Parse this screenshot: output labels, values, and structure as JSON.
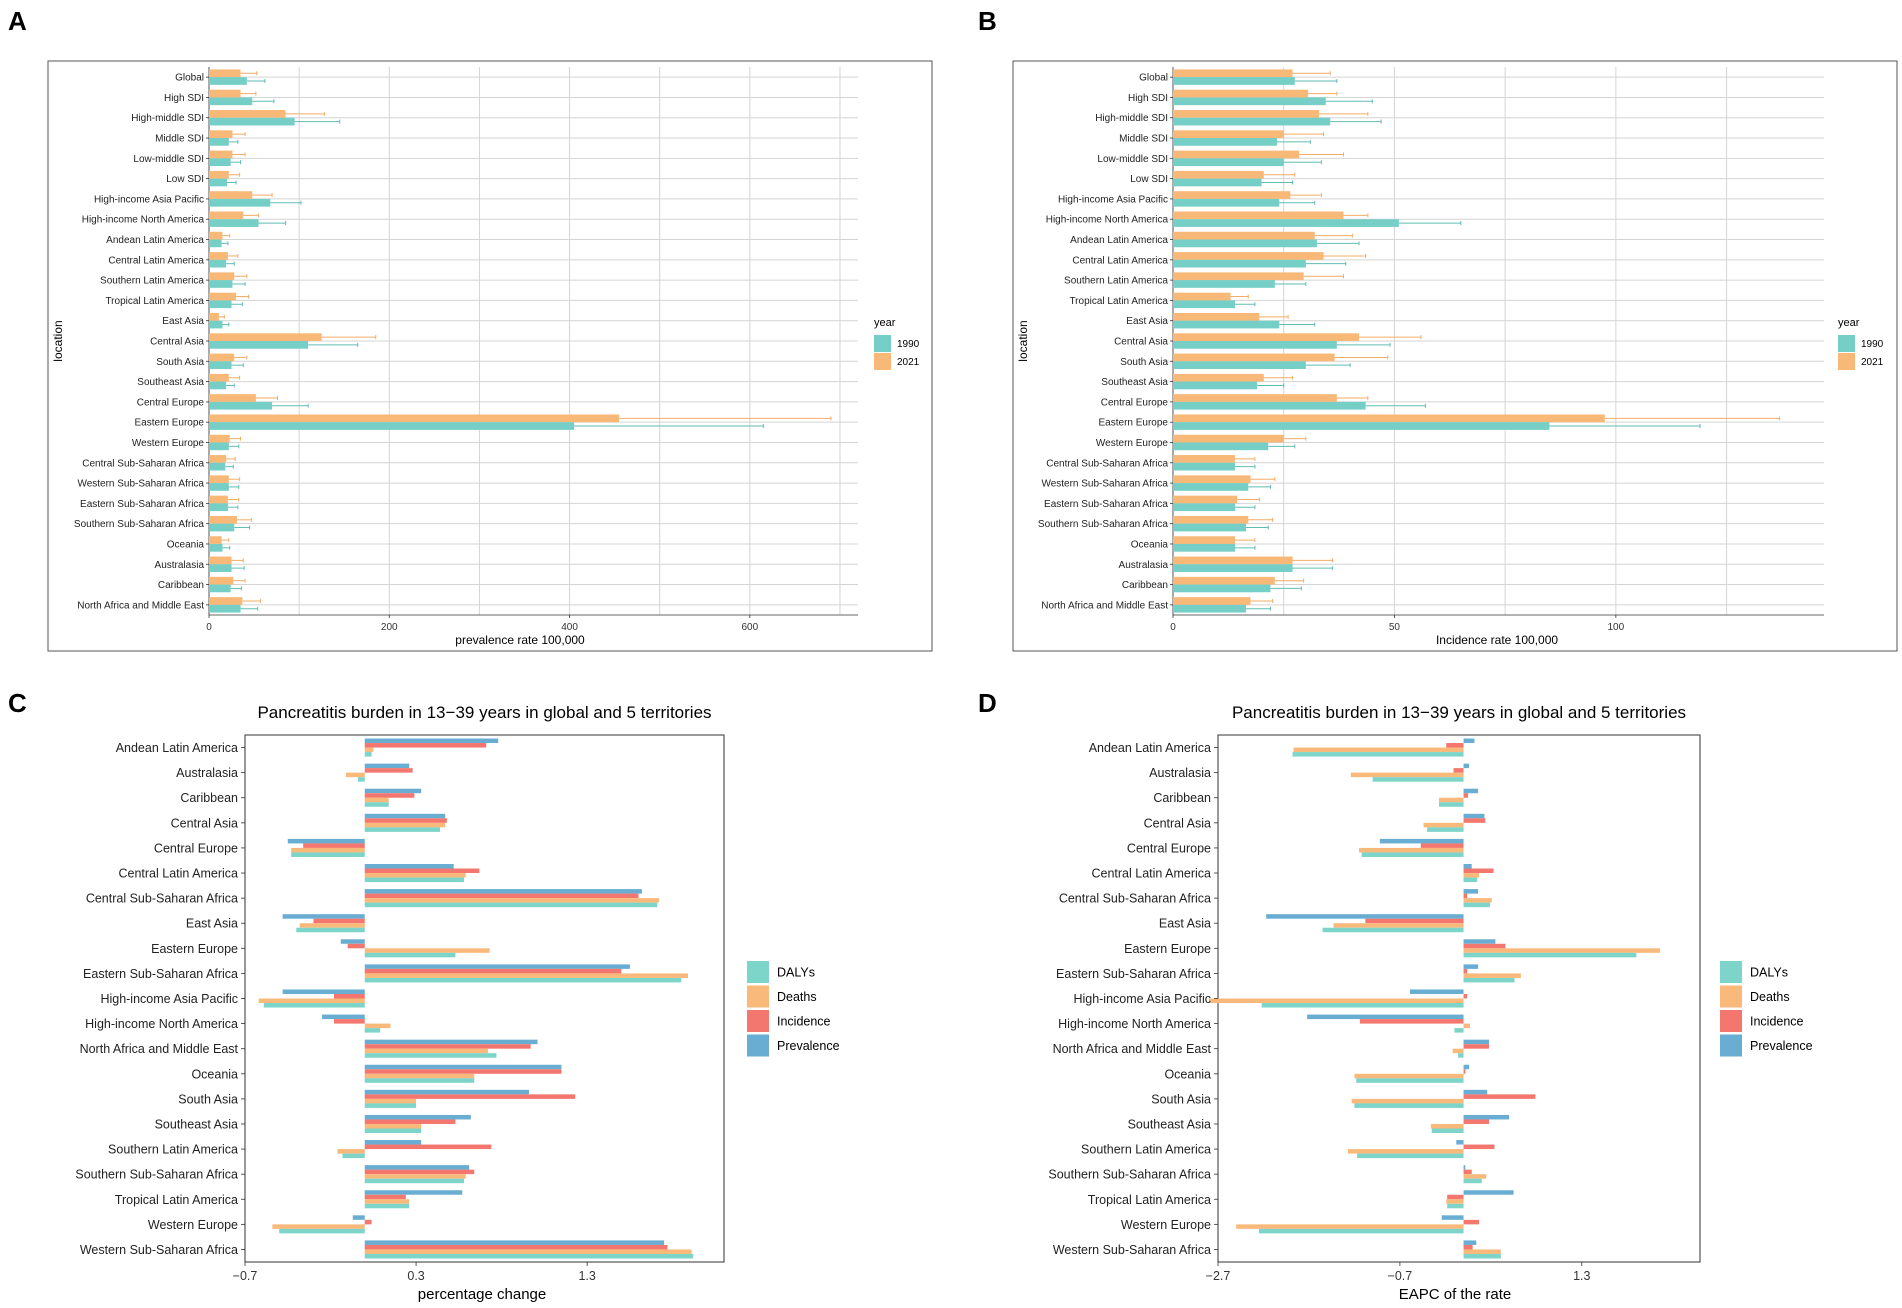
{
  "colors": {
    "c1990": "#75CFC6",
    "c2021": "#F8B877",
    "errbar1990": "#5fbdb4",
    "errbar2021": "#f3ac66",
    "DALYs": "#7DD4C9",
    "Deaths": "#F9B97A",
    "Incidence": "#F3776E",
    "Prevalence": "#6AADD3",
    "grid": "#d4d4d4"
  },
  "chart_data": [
    {
      "panel": "A",
      "type": "bar",
      "orientation": "horizontal",
      "title": "",
      "xlabel": "prevalence rate 100,000",
      "ylabel": "location",
      "xlim": [
        0,
        720
      ],
      "xticks": [
        0,
        200,
        400,
        600
      ],
      "legend": {
        "title": "year",
        "position": "right",
        "entries": [
          "1990",
          "2021"
        ]
      },
      "categories": [
        "Global",
        "High SDI",
        "High-middle SDI",
        "Middle SDI",
        "Low-middle SDI",
        "Low SDI",
        "High-income Asia Pacific",
        "High-income North America",
        "Andean Latin America",
        "Central Latin America",
        "Southern Latin America",
        "Tropical Latin America",
        "East Asia",
        "Central Asia",
        "South Asia",
        "Southeast Asia",
        "Central Europe",
        "Eastern Europe",
        "Western Europe",
        "Central Sub-Saharan Africa",
        "Western Sub-Saharan Africa",
        "Eastern Sub-Saharan Africa",
        "Southern Sub-Saharan Africa",
        "Oceania",
        "Australasia",
        "Caribbean",
        "North Africa and Middle East"
      ],
      "series": [
        {
          "name": "1990",
          "values": [
            42,
            48,
            95,
            22,
            24,
            20,
            68,
            55,
            14,
            19,
            26,
            25,
            15,
            110,
            25,
            19,
            70,
            405,
            22,
            18,
            22,
            21,
            28,
            15,
            25,
            24,
            35
          ],
          "upper": [
            62,
            72,
            145,
            32,
            35,
            30,
            102,
            85,
            21,
            28,
            40,
            37,
            22,
            165,
            38,
            28,
            110,
            615,
            33,
            27,
            33,
            32,
            45,
            23,
            39,
            36,
            54
          ]
        },
        {
          "name": "2021",
          "values": [
            35,
            35,
            85,
            26,
            26,
            22,
            48,
            38,
            15,
            21,
            28,
            30,
            11,
            125,
            28,
            22,
            52,
            455,
            23,
            19,
            22,
            21,
            31,
            14,
            25,
            27,
            37
          ],
          "upper": [
            53,
            52,
            128,
            40,
            40,
            34,
            70,
            55,
            23,
            32,
            42,
            44,
            17,
            185,
            42,
            34,
            76,
            690,
            35,
            29,
            34,
            33,
            47,
            22,
            38,
            40,
            57
          ]
        }
      ]
    },
    {
      "panel": "B",
      "type": "bar",
      "orientation": "horizontal",
      "title": "",
      "xlabel": "Incidence rate 100,000",
      "ylabel": "location",
      "xlim": [
        0,
        147
      ],
      "xticks": [
        0,
        50,
        100
      ],
      "legend": {
        "title": "year",
        "position": "right",
        "entries": [
          "1990",
          "2021"
        ]
      },
      "categories": [
        "Global",
        "High SDI",
        "High-middle SDI",
        "Middle SDI",
        "Low-middle SDI",
        "Low SDI",
        "High-income Asia Pacific",
        "High-income North America",
        "Andean Latin America",
        "Central Latin America",
        "Southern Latin America",
        "Tropical Latin America",
        "East Asia",
        "Central Asia",
        "South Asia",
        "Southeast Asia",
        "Central Europe",
        "Eastern Europe",
        "Western Europe",
        "Central Sub-Saharan Africa",
        "Western Sub-Saharan Africa",
        "Eastern Sub-Saharan Africa",
        "Southern Sub-Saharan Africa",
        "Oceania",
        "Australasia",
        "Caribbean",
        "North Africa and Middle East"
      ],
      "series": [
        {
          "name": "1990",
          "values": [
            27.5,
            34.5,
            35.5,
            23.5,
            25,
            20,
            24,
            51,
            32.5,
            30,
            23,
            14,
            24,
            37,
            30,
            19,
            43.5,
            85,
            21.5,
            14,
            17,
            14,
            16.5,
            14,
            27,
            22,
            16.5
          ],
          "upper": [
            37,
            45,
            47,
            31,
            33.5,
            27,
            32,
            65,
            42,
            39,
            30,
            18.5,
            32,
            49,
            40,
            25,
            57,
            119,
            27.5,
            18.5,
            22,
            18.5,
            21.5,
            18.5,
            36,
            29,
            22
          ]
        },
        {
          "name": "2021",
          "values": [
            27,
            30.5,
            33,
            25,
            28.5,
            20.5,
            26.5,
            38.5,
            32,
            34,
            29.5,
            13,
            19.5,
            42,
            36.5,
            20.5,
            37,
            97.5,
            25,
            14,
            17.5,
            14.5,
            17,
            14,
            27,
            23,
            17.5
          ],
          "upper": [
            35.5,
            37,
            44,
            34,
            38.5,
            27.5,
            33.5,
            44,
            40.5,
            43.5,
            38.5,
            17,
            26,
            56,
            48.5,
            27,
            44,
            137,
            30,
            18.5,
            23,
            19.5,
            22.5,
            18.5,
            36,
            29.5,
            22.5
          ]
        }
      ]
    },
    {
      "panel": "C",
      "type": "bar",
      "orientation": "horizontal",
      "title": "Pancreatitis burden in 13−39 years in global and 5 territories",
      "xlabel": "percentage change",
      "ylabel": "",
      "xlim": [
        -0.7,
        2.1
      ],
      "xticks": [
        -0.7,
        0.3,
        1.3
      ],
      "legend": {
        "title": "",
        "position": "right",
        "entries": [
          "DALYs",
          "Deaths",
          "Incidence",
          "Prevalence"
        ]
      },
      "categories": [
        "Andean Latin America",
        "Australasia",
        "Caribbean",
        "Central Asia",
        "Central Europe",
        "Central Latin America",
        "Central Sub-Saharan Africa",
        "East Asia",
        "Eastern Europe",
        "Eastern Sub-Saharan Africa",
        "High-income Asia Pacific",
        "High-income North America",
        "North Africa and Middle East",
        "Oceania",
        "South Asia",
        "Southeast Asia",
        "Southern Latin America",
        "Southern Sub-Saharan Africa",
        "Tropical Latin America",
        "Western Europe",
        "Western Sub-Saharan Africa"
      ],
      "series": [
        {
          "name": "Prevalence",
          "values": [
            0.78,
            0.26,
            0.33,
            0.47,
            -0.45,
            0.52,
            1.62,
            -0.48,
            -0.14,
            1.55,
            -0.48,
            -0.25,
            1.01,
            1.15,
            0.96,
            0.62,
            0.33,
            0.61,
            0.57,
            -0.07,
            1.75
          ]
        },
        {
          "name": "Incidence",
          "values": [
            0.71,
            0.28,
            0.29,
            0.48,
            -0.36,
            0.67,
            1.6,
            -0.3,
            -0.1,
            1.5,
            -0.18,
            -0.18,
            0.97,
            1.15,
            1.23,
            0.53,
            0.74,
            0.64,
            0.24,
            0.04,
            1.77
          ]
        },
        {
          "name": "Deaths",
          "values": [
            0.05,
            -0.11,
            0.14,
            0.47,
            -0.43,
            0.59,
            1.72,
            -0.38,
            0.73,
            1.89,
            -0.62,
            0.15,
            0.72,
            0.64,
            0.3,
            0.33,
            -0.16,
            0.59,
            0.26,
            -0.54,
            1.91
          ]
        },
        {
          "name": "DALYs",
          "values": [
            0.04,
            -0.04,
            0.14,
            0.44,
            -0.43,
            0.58,
            1.71,
            -0.4,
            0.53,
            1.85,
            -0.59,
            0.09,
            0.77,
            0.64,
            0.3,
            0.33,
            -0.13,
            0.58,
            0.26,
            -0.5,
            1.92
          ]
        }
      ]
    },
    {
      "panel": "D",
      "type": "bar",
      "orientation": "horizontal",
      "title": "Pancreatitis burden in 13−39 years in global and 5 territories",
      "xlabel": "EAPC of the rate",
      "ylabel": "",
      "xlim": [
        -2.7,
        2.6
      ],
      "xticks": [
        -2.7,
        -0.7,
        1.3
      ],
      "legend": {
        "title": "",
        "position": "right",
        "entries": [
          "DALYs",
          "Deaths",
          "Incidence",
          "Prevalence"
        ]
      },
      "categories": [
        "Andean Latin America",
        "Australasia",
        "Caribbean",
        "Central Asia",
        "Central Europe",
        "Central Latin America",
        "Central Sub-Saharan Africa",
        "East Asia",
        "Eastern Europe",
        "Eastern Sub-Saharan Africa",
        "High-income Asia Pacific",
        "High-income North America",
        "North Africa and Middle East",
        "Oceania",
        "South Asia",
        "Southeast Asia",
        "Southern Latin America",
        "Southern Sub-Saharan Africa",
        "Tropical Latin America",
        "Western Europe",
        "Western Sub-Saharan Africa"
      ],
      "series": [
        {
          "name": "Prevalence",
          "values": [
            0.12,
            0.06,
            0.16,
            0.23,
            -0.92,
            0.09,
            0.16,
            -2.17,
            0.35,
            0.16,
            -0.59,
            -1.72,
            0.28,
            0.06,
            0.26,
            0.5,
            -0.08,
            0.02,
            0.55,
            -0.24,
            0.14
          ]
        },
        {
          "name": "Incidence",
          "values": [
            -0.19,
            -0.11,
            0.05,
            0.24,
            -0.47,
            0.33,
            0.04,
            -1.08,
            0.46,
            0.04,
            0.04,
            -1.14,
            0.28,
            0.02,
            0.79,
            0.28,
            0.34,
            0.09,
            -0.18,
            0.17,
            0.1
          ]
        },
        {
          "name": "Deaths",
          "values": [
            -1.87,
            -1.24,
            -0.27,
            -0.44,
            -1.15,
            0.17,
            0.31,
            -1.43,
            2.16,
            0.63,
            -2.8,
            0.07,
            -0.12,
            -1.2,
            -1.23,
            -0.36,
            -1.27,
            0.25,
            -0.19,
            -2.5,
            0.41
          ]
        },
        {
          "name": "DALYs",
          "values": [
            -1.88,
            -1.0,
            -0.27,
            -0.4,
            -1.12,
            0.15,
            0.29,
            -1.55,
            1.9,
            0.56,
            -2.22,
            -0.1,
            -0.06,
            -1.18,
            -1.2,
            -0.35,
            -1.17,
            0.2,
            -0.18,
            -2.25,
            0.41
          ]
        }
      ]
    }
  ]
}
